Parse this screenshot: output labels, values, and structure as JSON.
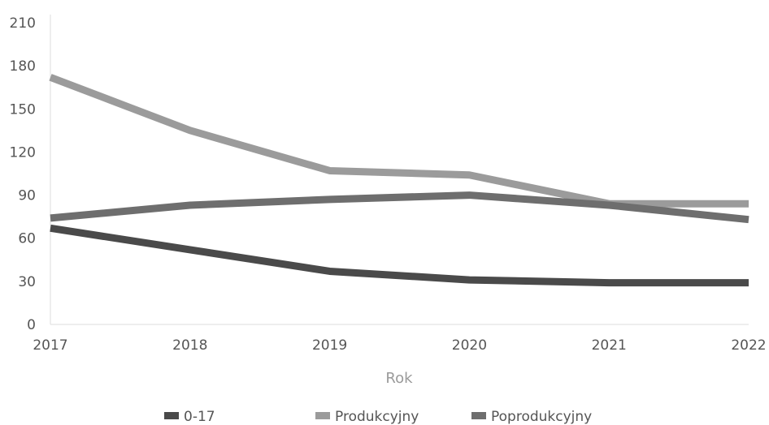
{
  "chart_data": {
    "type": "line",
    "x": [
      2017,
      2018,
      2019,
      2020,
      2021,
      2022
    ],
    "xlabel": "Rok",
    "ylabel": "",
    "ylim": [
      0,
      210
    ],
    "yticks": [
      0,
      30,
      60,
      90,
      120,
      150,
      180,
      210
    ],
    "grid": false,
    "legend_position": "bottom",
    "series": [
      {
        "name": "0-17",
        "color": "#4a4a4a",
        "values": [
          67,
          52,
          37,
          31,
          29,
          29
        ]
      },
      {
        "name": "Produkcyjny",
        "color": "#9b9b9b",
        "values": [
          172,
          135,
          107,
          104,
          84,
          84
        ]
      },
      {
        "name": "Poprodukcyjny",
        "color": "#6e6e6e",
        "values": [
          74,
          83,
          87,
          90,
          83,
          73
        ]
      }
    ]
  }
}
